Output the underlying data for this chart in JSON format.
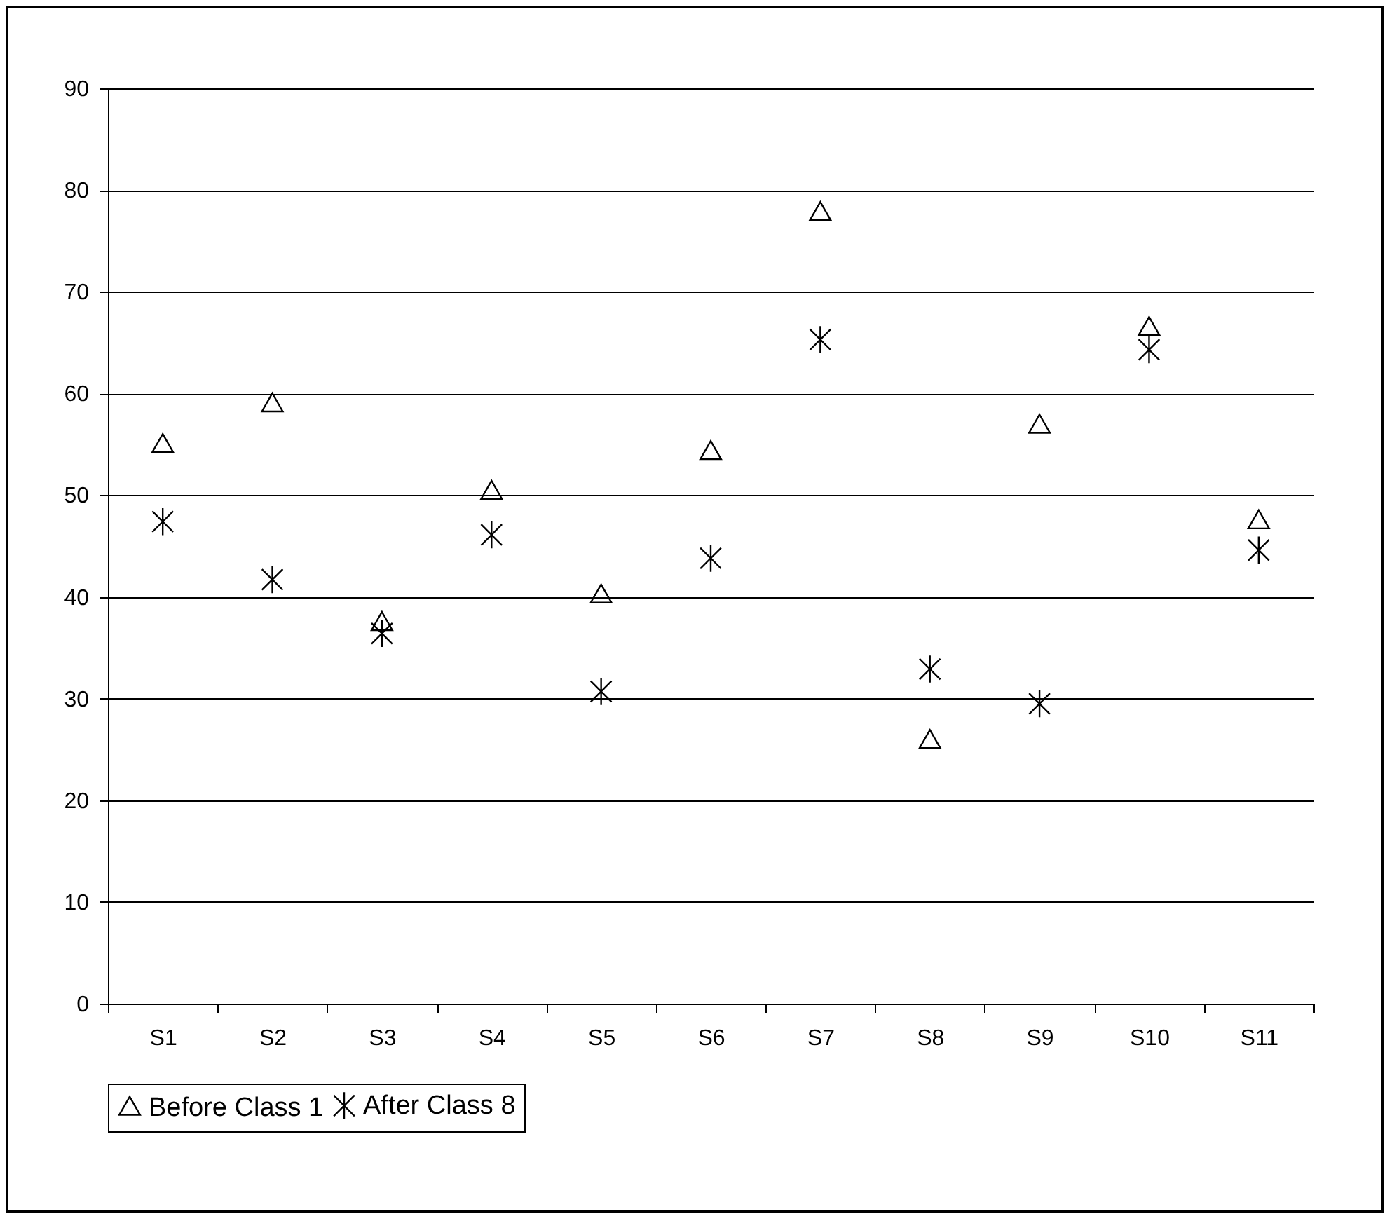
{
  "chart_data": {
    "type": "scatter",
    "categories": [
      "S1",
      "S2",
      "S3",
      "S4",
      "S5",
      "S6",
      "S7",
      "S8",
      "S9",
      "S10",
      "S11"
    ],
    "series": [
      {
        "name": "Before Class 1",
        "color": "#000000",
        "marker": "triangle",
        "values": [
          55,
          59,
          37.5,
          50.4,
          40.2,
          54.3,
          77.8,
          25.9,
          56.9,
          66.5,
          47.5
        ]
      },
      {
        "name": "After Class 8",
        "color": "#000000",
        "marker": "cross",
        "values": [
          47.4,
          41.7,
          36.4,
          46.1,
          30.7,
          43.8,
          65.3,
          32.9,
          29.5,
          64.3,
          44.6
        ]
      }
    ],
    "ylim": [
      0,
      90
    ],
    "yticks": [
      0,
      10,
      20,
      30,
      40,
      50,
      60,
      70,
      80,
      90
    ],
    "grid": "y",
    "legend": "bottom"
  }
}
